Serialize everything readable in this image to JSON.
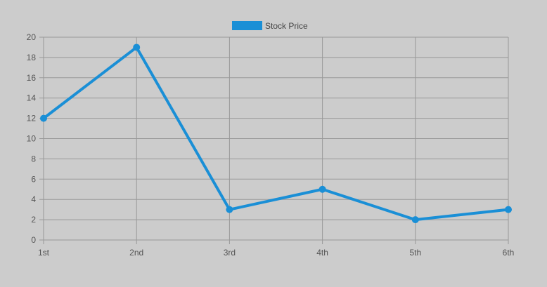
{
  "chart_data": {
    "type": "line",
    "categories": [
      "1st",
      "2nd",
      "3rd",
      "4th",
      "5th",
      "6th"
    ],
    "series": [
      {
        "name": "Stock Price",
        "values": [
          12,
          19,
          3,
          5,
          2,
          3
        ]
      }
    ],
    "ylim": [
      0,
      20
    ],
    "y_ticks": [
      0,
      2,
      4,
      6,
      8,
      10,
      12,
      14,
      16,
      18,
      20
    ],
    "grid": true,
    "legend": "top-center",
    "colors": {
      "line": "#1a8fd6",
      "background": "#cccccc",
      "grid": "#999999"
    }
  }
}
